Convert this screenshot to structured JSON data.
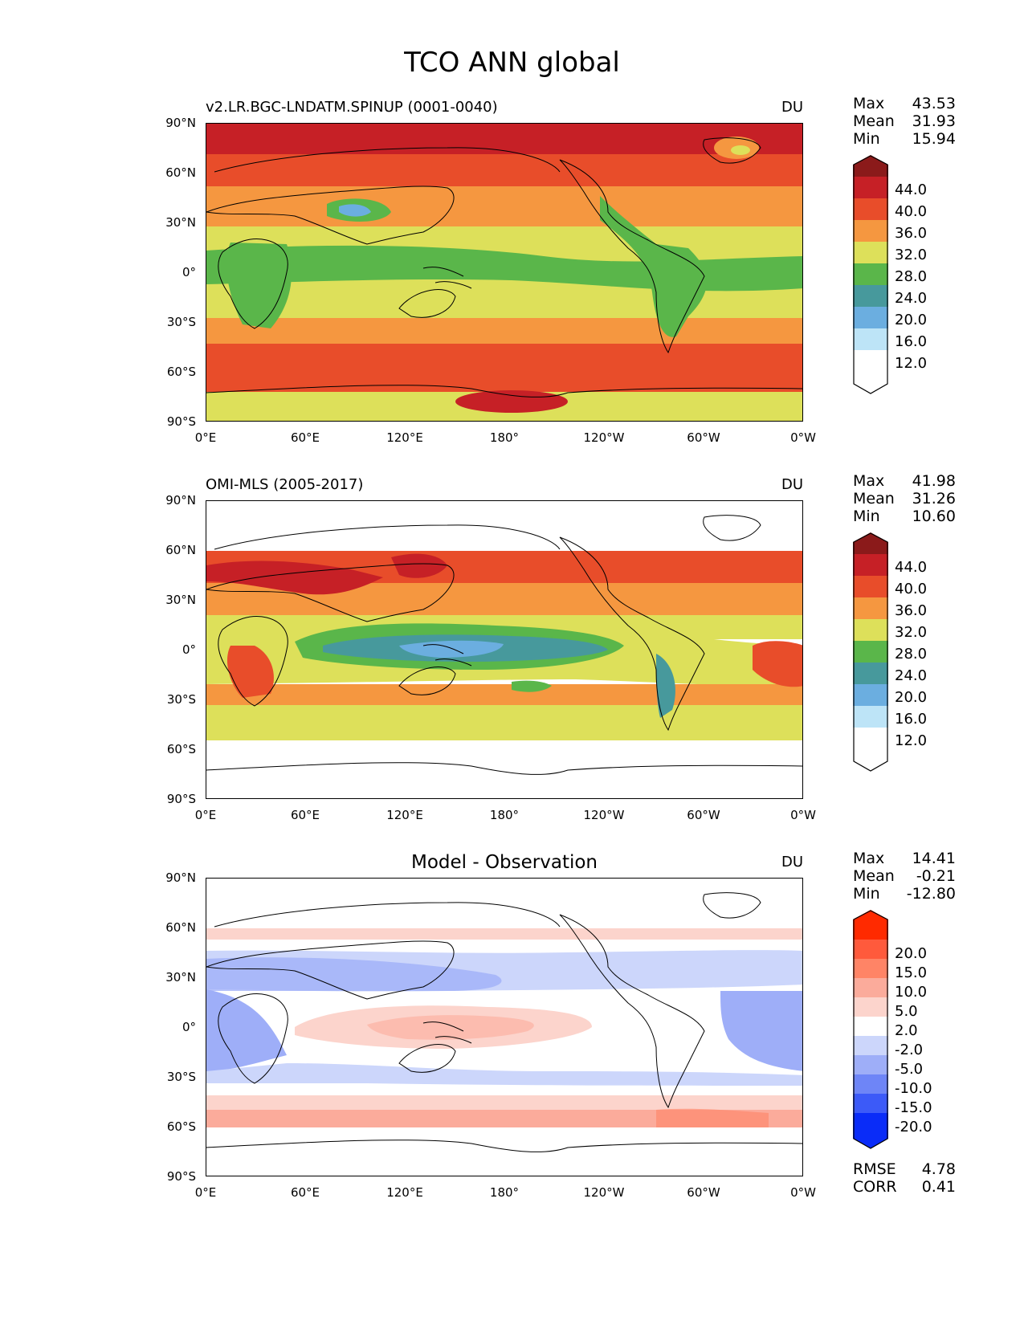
{
  "figure_title": "TCO ANN global",
  "lat_ticks": [
    "90°N",
    "60°N",
    "30°N",
    "0°",
    "30°S",
    "60°S",
    "90°S"
  ],
  "lon_ticks": [
    "0°E",
    "60°E",
    "120°E",
    "180°",
    "120°W",
    "60°W",
    "0°W"
  ],
  "panels": [
    {
      "title": "v2.LR.BGC-LNDATM.SPINUP (0001-0040)",
      "title_center": "",
      "units": "DU",
      "stats": {
        "max_label": "Max",
        "max": "43.53",
        "mean_label": "Mean",
        "mean": "31.93",
        "min_label": "Min",
        "min": "15.94"
      },
      "colorbar_labels": [
        "44.0",
        "40.0",
        "36.0",
        "32.0",
        "28.0",
        "24.0",
        "20.0",
        "16.0",
        "12.0"
      ]
    },
    {
      "title": "OMI-MLS (2005-2017)",
      "title_center": "",
      "units": "DU",
      "stats": {
        "max_label": "Max",
        "max": "41.98",
        "mean_label": "Mean",
        "mean": "31.26",
        "min_label": "Min",
        "min": "10.60"
      },
      "colorbar_labels": [
        "44.0",
        "40.0",
        "36.0",
        "32.0",
        "28.0",
        "24.0",
        "20.0",
        "16.0",
        "12.0"
      ]
    },
    {
      "title": "",
      "title_center": "Model - Observation",
      "units": "DU",
      "stats": {
        "max_label": "Max",
        "max": "14.41",
        "mean_label": "Mean",
        "mean": "-0.21",
        "min_label": "Min",
        "min": "-12.80"
      },
      "colorbar_labels": [
        "20.0",
        "15.0",
        "10.0",
        "5.0",
        "2.0",
        "-2.0",
        "-5.0",
        "-10.0",
        "-15.0",
        "-20.0"
      ],
      "rmse_label": "RMSE",
      "rmse": "4.78",
      "corr_label": "CORR",
      "corr": "0.41"
    }
  ],
  "colormaps": {
    "abs": [
      "#8b1a1a",
      "#c62026",
      "#e84d2a",
      "#f59740",
      "#dde05a",
      "#5ab64a",
      "#47999c",
      "#6baee0",
      "#bde4f7",
      "#ffffff"
    ],
    "diff": [
      "#ff2a00",
      "#ff5a3c",
      "#ff8466",
      "#fbab9b",
      "#fcd4cc",
      "#ffffff",
      "#ccd6fb",
      "#9eaef8",
      "#6e85f7",
      "#3c5af8",
      "#0a2cf8"
    ]
  },
  "chart_data": [
    {
      "type": "heatmap",
      "title": "v2.LR.BGC-LNDATM.SPINUP (0001-0040)",
      "units": "DU",
      "x_range": [
        "0°E",
        "0°W"
      ],
      "y_range": [
        "90°S",
        "90°N"
      ],
      "zonal_band_values_north_to_south": [
        {
          "lat": "90-75°N",
          "value": 42
        },
        {
          "lat": "75-60°N",
          "value": 38
        },
        {
          "lat": "60-45°N",
          "value": 36
        },
        {
          "lat": "45-30°N",
          "value": 33
        },
        {
          "lat": "30-10°N",
          "value": 30
        },
        {
          "lat": "10°N-5°S",
          "value": 26
        },
        {
          "lat": "5-25°S",
          "value": 30
        },
        {
          "lat": "25-45°S",
          "value": 33
        },
        {
          "lat": "45-70°S",
          "value": 37
        },
        {
          "lat": "70-90°S",
          "value": 30
        }
      ],
      "stats": {
        "max": 43.53,
        "mean": 31.93,
        "min": 15.94
      },
      "colorbar_levels": [
        44,
        40,
        36,
        32,
        28,
        24,
        20,
        16,
        12
      ]
    },
    {
      "type": "heatmap",
      "title": "OMI-MLS (2005-2017)",
      "units": "DU",
      "x_range": [
        "0°E",
        "0°W"
      ],
      "y_range": [
        "90°S",
        "90°N"
      ],
      "data_lat_range": [
        "60°S",
        "60°N"
      ],
      "zonal_band_values_north_to_south": [
        {
          "lat": "60-45°N",
          "value": 37
        },
        {
          "lat": "45-25°N",
          "value": 35
        },
        {
          "lat": "25-10°N",
          "value": 31
        },
        {
          "lat": "10°N-10°S",
          "value": 25
        },
        {
          "lat": "10-25°S",
          "value": 30
        },
        {
          "lat": "25-40°S",
          "value": 32
        },
        {
          "lat": "40-60°S",
          "value": 30
        }
      ],
      "stats": {
        "max": 41.98,
        "mean": 31.26,
        "min": 10.6
      },
      "colorbar_levels": [
        44,
        40,
        36,
        32,
        28,
        24,
        20,
        16,
        12
      ]
    },
    {
      "type": "heatmap",
      "title": "Model - Observation",
      "units": "DU",
      "x_range": [
        "0°E",
        "0°W"
      ],
      "y_range": [
        "90°S",
        "90°N"
      ],
      "data_lat_range": [
        "60°S",
        "60°N"
      ],
      "zonal_band_values_north_to_south": [
        {
          "lat": "60-50°N",
          "value": 3
        },
        {
          "lat": "50-40°N",
          "value": 0
        },
        {
          "lat": "40-15°N",
          "value": -4
        },
        {
          "lat": "15°N-15°S",
          "value": 2
        },
        {
          "lat": "15-30°S",
          "value": -3
        },
        {
          "lat": "30-40°S",
          "value": 0
        },
        {
          "lat": "40-60°S",
          "value": 6
        }
      ],
      "stats": {
        "max": 14.41,
        "mean": -0.21,
        "min": -12.8,
        "rmse": 4.78,
        "corr": 0.41
      },
      "colorbar_levels": [
        20,
        15,
        10,
        5,
        2,
        -2,
        -5,
        -10,
        -15,
        -20
      ]
    }
  ]
}
